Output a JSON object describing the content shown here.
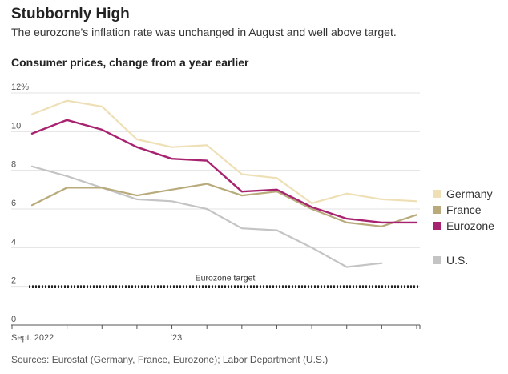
{
  "header": {
    "title": "Stubbornly High",
    "subtitle": "The eurozone’s inflation rate was unchanged in August and well above target."
  },
  "source": "Sources: Eurostat (Germany, France, Eurozone); Labor Department (U.S.)",
  "chart_data": {
    "type": "line",
    "title": "Consumer prices, change from a year earlier",
    "x": [
      "2022-09",
      "2022-10",
      "2022-11",
      "2022-12",
      "2023-01",
      "2023-02",
      "2023-03",
      "2023-04",
      "2023-05",
      "2023-06",
      "2023-07",
      "2023-08"
    ],
    "x_tick_labels": [
      {
        "month": "2022-09",
        "label": "Sept. 2022"
      },
      {
        "month": "2023-01",
        "label": "’23"
      }
    ],
    "ylim": [
      0,
      12
    ],
    "y_ticks": [
      {
        "value": 0,
        "label": "0"
      },
      {
        "value": 2,
        "label": "2"
      },
      {
        "value": 4,
        "label": "4"
      },
      {
        "value": 6,
        "label": "6"
      },
      {
        "value": 8,
        "label": "8"
      },
      {
        "value": 10,
        "label": "10"
      },
      {
        "value": 12,
        "label": "12%"
      }
    ],
    "grid": true,
    "legend_position": "right",
    "series": [
      {
        "name": "Germany",
        "color": "#eedfb5",
        "values": [
          10.9,
          11.6,
          11.3,
          9.6,
          9.2,
          9.3,
          7.8,
          7.6,
          6.3,
          6.8,
          6.5,
          6.4
        ]
      },
      {
        "name": "France",
        "color": "#b8aa7a",
        "values": [
          6.2,
          7.1,
          7.1,
          6.7,
          7.0,
          7.3,
          6.7,
          6.9,
          6.0,
          5.3,
          5.1,
          5.7
        ]
      },
      {
        "name": "Eurozone",
        "color": "#a8236f",
        "values": [
          9.9,
          10.6,
          10.1,
          9.2,
          8.6,
          8.5,
          6.9,
          7.0,
          6.1,
          5.5,
          5.3,
          5.3
        ]
      },
      {
        "name": "U.S.",
        "color": "#c4c4c4",
        "values": [
          8.2,
          7.7,
          7.1,
          6.5,
          6.4,
          6.0,
          5.0,
          4.9,
          4.0,
          3.0,
          3.2,
          null
        ]
      }
    ],
    "reference_line": {
      "value": 2,
      "label": "Eurozone target",
      "color": "#222222"
    }
  }
}
